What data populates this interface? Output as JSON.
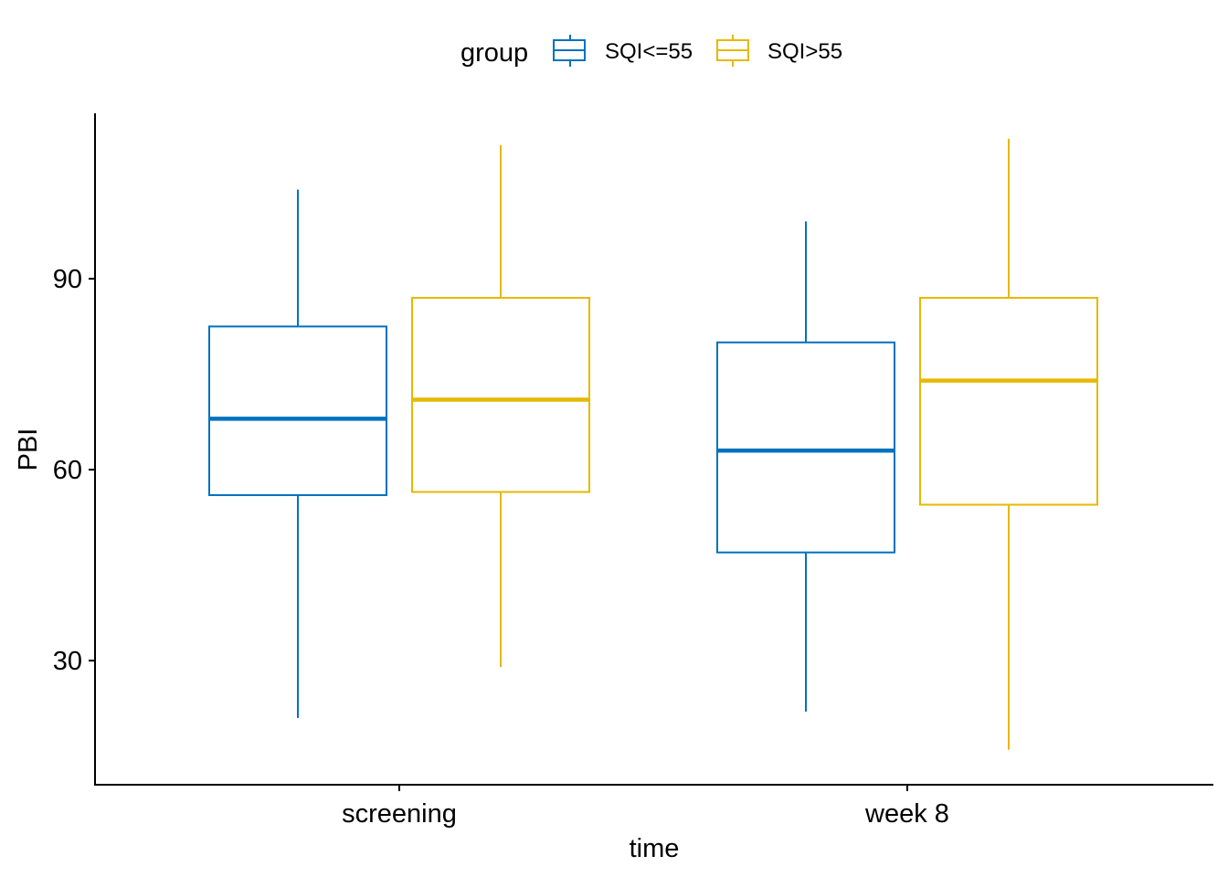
{
  "chart_data": {
    "type": "boxplot",
    "title": "",
    "xlabel": "time",
    "ylabel": "PBI",
    "categories": [
      "screening",
      "week 8"
    ],
    "ylim": [
      10.5,
      116
    ],
    "yticks": [
      30,
      60,
      90
    ],
    "grid": false,
    "legend": {
      "title": "group",
      "position": "top",
      "entries": [
        "SQI<=55",
        "SQI>55"
      ]
    },
    "series": [
      {
        "name": "SQI<=55",
        "color": "#0072BD",
        "boxes": [
          {
            "category": "screening",
            "min": 21,
            "q1": 56,
            "median": 68,
            "q3": 82.5,
            "max": 104
          },
          {
            "category": "week 8",
            "min": 22,
            "q1": 47,
            "median": 63,
            "q3": 80,
            "max": 99
          }
        ]
      },
      {
        "name": "SQI>55",
        "color": "#E6B800",
        "boxes": [
          {
            "category": "screening",
            "min": 29,
            "q1": 56.5,
            "median": 71,
            "q3": 87,
            "max": 111
          },
          {
            "category": "week 8",
            "min": 16,
            "q1": 54.5,
            "median": 74,
            "q3": 87,
            "max": 112
          }
        ]
      }
    ]
  }
}
